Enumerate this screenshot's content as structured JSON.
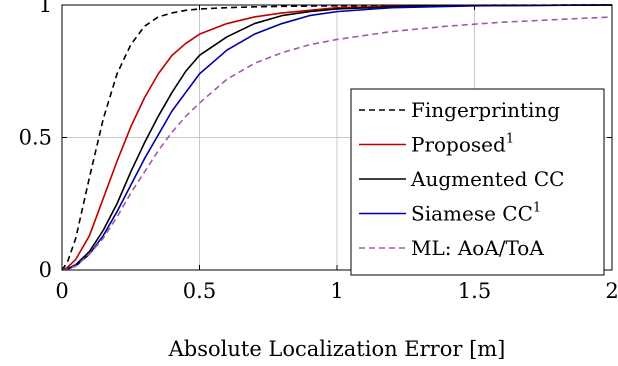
{
  "chart_data": {
    "type": "line",
    "title": "",
    "xlabel": "Absolute Localization Error [m]",
    "ylabel": "",
    "xlim": [
      0,
      2
    ],
    "ylim": [
      0,
      1
    ],
    "xticks": [
      0,
      0.5,
      1,
      1.5,
      2
    ],
    "xtick_labels": [
      "0",
      "0.5",
      "1",
      "1.5",
      "2"
    ],
    "yticks": [
      0,
      0.5,
      1
    ],
    "ytick_labels": [
      "0",
      "0.5",
      "1"
    ],
    "grid": true,
    "legend_position": "bottom-right",
    "series": [
      {
        "name": "Fingerprinting",
        "color": "#000000",
        "dash": "dashed",
        "x": [
          0,
          0.02,
          0.05,
          0.1,
          0.15,
          0.2,
          0.25,
          0.3,
          0.35,
          0.4,
          0.45,
          0.5,
          0.6,
          0.7,
          0.8,
          1.0,
          1.5,
          2.0
        ],
        "y": [
          0,
          0.03,
          0.12,
          0.35,
          0.57,
          0.74,
          0.85,
          0.92,
          0.955,
          0.97,
          0.98,
          0.985,
          0.99,
          0.993,
          0.995,
          0.997,
          0.999,
          1.0
        ]
      },
      {
        "name": "Proposed",
        "name_superscript": "1",
        "color": "#c00000",
        "dash": "solid",
        "x": [
          0,
          0.02,
          0.05,
          0.1,
          0.15,
          0.2,
          0.25,
          0.3,
          0.35,
          0.4,
          0.45,
          0.5,
          0.6,
          0.7,
          0.8,
          0.9,
          1.0,
          1.2,
          1.5,
          2.0
        ],
        "y": [
          0,
          0.01,
          0.04,
          0.13,
          0.27,
          0.41,
          0.54,
          0.65,
          0.74,
          0.81,
          0.855,
          0.89,
          0.93,
          0.955,
          0.97,
          0.98,
          0.99,
          0.995,
          0.998,
          1.0
        ]
      },
      {
        "name": "Augmented CC",
        "color": "#000000",
        "dash": "solid",
        "x": [
          0,
          0.02,
          0.05,
          0.1,
          0.15,
          0.2,
          0.25,
          0.3,
          0.35,
          0.4,
          0.45,
          0.5,
          0.6,
          0.7,
          0.8,
          0.9,
          1.0,
          1.2,
          1.5,
          2.0
        ],
        "y": [
          0,
          0.005,
          0.02,
          0.07,
          0.15,
          0.25,
          0.37,
          0.48,
          0.58,
          0.67,
          0.75,
          0.81,
          0.88,
          0.93,
          0.96,
          0.975,
          0.985,
          0.993,
          0.998,
          1.0
        ]
      },
      {
        "name": "Siamese CC",
        "name_superscript": "1",
        "color": "#0000a8",
        "dash": "solid",
        "x": [
          0,
          0.02,
          0.05,
          0.1,
          0.15,
          0.2,
          0.25,
          0.3,
          0.35,
          0.4,
          0.45,
          0.5,
          0.6,
          0.7,
          0.8,
          0.9,
          1.0,
          1.2,
          1.5,
          2.0
        ],
        "y": [
          0,
          0.004,
          0.015,
          0.06,
          0.13,
          0.22,
          0.32,
          0.42,
          0.51,
          0.6,
          0.67,
          0.74,
          0.83,
          0.89,
          0.93,
          0.96,
          0.975,
          0.99,
          0.997,
          1.0
        ]
      },
      {
        "name": "ML: AoA/ToA",
        "color": "#a05aa8",
        "dash": "dashed",
        "x": [
          0,
          0.02,
          0.05,
          0.1,
          0.15,
          0.2,
          0.25,
          0.3,
          0.35,
          0.4,
          0.45,
          0.5,
          0.6,
          0.7,
          0.8,
          0.9,
          1.0,
          1.2,
          1.4,
          1.6,
          1.8,
          2.0
        ],
        "y": [
          0,
          0.004,
          0.015,
          0.06,
          0.12,
          0.2,
          0.29,
          0.37,
          0.45,
          0.52,
          0.58,
          0.63,
          0.72,
          0.78,
          0.82,
          0.85,
          0.87,
          0.9,
          0.92,
          0.935,
          0.945,
          0.955
        ]
      }
    ]
  }
}
